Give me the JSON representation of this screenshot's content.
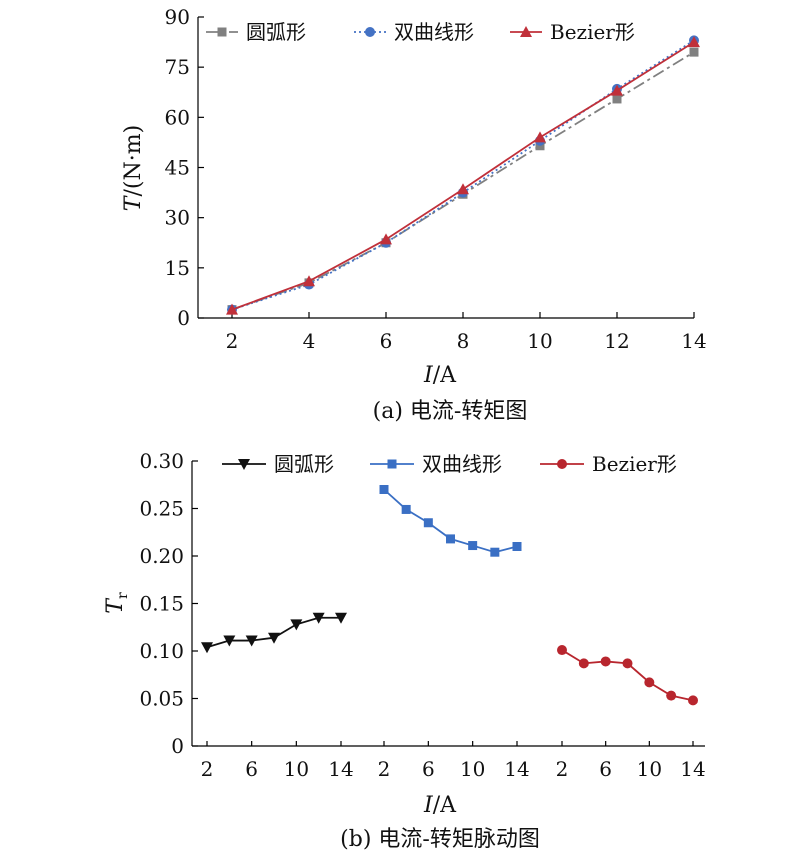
{
  "chart_data": [
    {
      "type": "line",
      "caption": "(a) 电流-转矩图",
      "xlabel_var": "I",
      "xlabel_unit": "/A",
      "ylabel_var": "T",
      "ylabel_unit": "/(N·m)",
      "xlim": [
        2,
        14
      ],
      "ylim": [
        0,
        90
      ],
      "x_ticks": [
        "2",
        "4",
        "6",
        "8",
        "10",
        "12",
        "14"
      ],
      "y_ticks": [
        "0",
        "15",
        "30",
        "45",
        "60",
        "75",
        "90"
      ],
      "legend_position": "top",
      "x": [
        2,
        4,
        6,
        8,
        10,
        12,
        14
      ],
      "series": [
        {
          "name": "圆弧形",
          "color": "#808080",
          "marker": "square",
          "dash": "dashdot",
          "values": [
            2.5,
            10.5,
            22.5,
            37.0,
            51.5,
            65.5,
            79.5
          ]
        },
        {
          "name": "双曲线形",
          "color": "#4472C4",
          "marker": "circle",
          "dash": "dotted",
          "values": [
            2.5,
            10.0,
            22.5,
            37.5,
            53.0,
            68.5,
            83.0
          ]
        },
        {
          "name": "Bezier形",
          "color": "#C0303A",
          "marker": "triangle",
          "dash": "solid",
          "values": [
            2.5,
            11.0,
            23.5,
            38.5,
            54.0,
            68.0,
            82.5
          ]
        }
      ]
    },
    {
      "type": "line",
      "caption": "(b) 电流-转矩脉动图",
      "xlabel_var": "I",
      "xlabel_unit": "/A",
      "ylabel_var": "T",
      "ylabel_sub": "r",
      "ylim": [
        0,
        0.3
      ],
      "y_ticks": [
        "0",
        "0.05",
        "0.10",
        "0.15",
        "0.20",
        "0.25",
        "0.30"
      ],
      "x_ticks": [
        "2",
        "6",
        "10",
        "14"
      ],
      "legend_position": "top",
      "x": [
        2,
        4,
        6,
        8,
        10,
        12,
        14
      ],
      "series": [
        {
          "name": "圆弧形",
          "color": "#111111",
          "marker": "triangle-down",
          "values": [
            0.104,
            0.111,
            0.111,
            0.114,
            0.128,
            0.135,
            0.135
          ]
        },
        {
          "name": "双曲线形",
          "color": "#3A6FC4",
          "marker": "square",
          "values": [
            0.27,
            0.249,
            0.235,
            0.218,
            0.211,
            0.204,
            0.21
          ]
        },
        {
          "name": "Bezier形",
          "color": "#B8262E",
          "marker": "circle",
          "values": [
            0.101,
            0.087,
            0.089,
            0.087,
            0.067,
            0.053,
            0.048
          ]
        }
      ]
    }
  ]
}
